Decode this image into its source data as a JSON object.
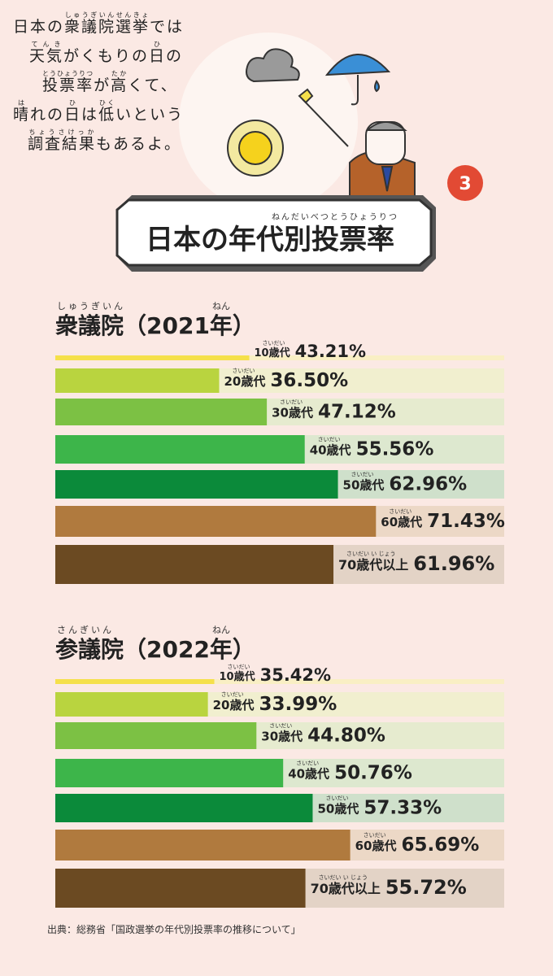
{
  "intro": [
    [
      "日本の",
      {
        "base": "衆議院選挙",
        "ruby": "しゅうぎいんせんきょ"
      },
      "では"
    ],
    [
      {
        "base": "天気",
        "ruby": "てんき"
      },
      "がくもりの",
      {
        "base": "日",
        "ruby": "ひ"
      },
      "の"
    ],
    [
      {
        "base": "投票率",
        "ruby": "とうひょうりつ"
      },
      "が",
      {
        "base": "高",
        "ruby": "たか"
      },
      "くて、"
    ],
    [
      {
        "base": "晴",
        "ruby": "は"
      },
      "れの",
      {
        "base": "日",
        "ruby": "ひ"
      },
      "は",
      {
        "base": "低",
        "ruby": "ひく"
      },
      "いという"
    ],
    [
      {
        "base": "調査結果",
        "ruby": "ちょうさけっか"
      },
      "もあるよ。"
    ]
  ],
  "badge": "3",
  "header": {
    "prefix": "日本の",
    "base": "年代別投票率",
    "ruby": "ねんだいべつとうひょうりつ"
  },
  "chart_data": [
    {
      "type": "bar",
      "title": "衆議院（2021年）",
      "title_ruby": [
        "しゅうぎいん",
        "ねん"
      ],
      "categories": [
        "10歳代",
        "20歳代",
        "30歳代",
        "40歳代",
        "50歳代",
        "60歳代",
        "70歳代以上"
      ],
      "category_ruby": [
        "さいだい",
        "さいだい",
        "さいだい",
        "さいだい",
        "さいだい",
        "さいだい",
        "さいだい い じょう"
      ],
      "values": [
        43.21,
        36.5,
        47.12,
        55.56,
        62.96,
        71.43,
        61.96
      ],
      "value_labels": [
        "43.21%",
        "36.50%",
        "47.12%",
        "55.56%",
        "62.96%",
        "71.43%",
        "61.96%"
      ],
      "xlim": [
        0,
        100
      ],
      "colors": [
        "#f5e04a",
        "#b9d43f",
        "#7cc144",
        "#3db54a",
        "#0b8a3a",
        "#b07a3e",
        "#6b4a22"
      ],
      "track_colors": [
        "#f9efc4",
        "#f1efcf",
        "#e6ebcf",
        "#dde8cf",
        "#cfe0cb",
        "#ecd8c6",
        "#e3d3c6"
      ]
    },
    {
      "type": "bar",
      "title": "参議院（2022年）",
      "title_ruby": [
        "さんぎいん",
        "ねん"
      ],
      "categories": [
        "10歳代",
        "20歳代",
        "30歳代",
        "40歳代",
        "50歳代",
        "60歳代",
        "70歳代以上"
      ],
      "category_ruby": [
        "さいだい",
        "さいだい",
        "さいだい",
        "さいだい",
        "さいだい",
        "さいだい",
        "さいだい い じょう"
      ],
      "values": [
        35.42,
        33.99,
        44.8,
        50.76,
        57.33,
        65.69,
        55.72
      ],
      "value_labels": [
        "35.42%",
        "33.99%",
        "44.80%",
        "50.76%",
        "57.33%",
        "65.69%",
        "55.72%"
      ],
      "xlim": [
        0,
        100
      ],
      "colors": [
        "#f5e04a",
        "#b9d43f",
        "#7cc144",
        "#3db54a",
        "#0b8a3a",
        "#b07a3e",
        "#6b4a22"
      ],
      "track_colors": [
        "#f9efc4",
        "#f1efcf",
        "#e6ebcf",
        "#dde8cf",
        "#cfe0cb",
        "#ecd8c6",
        "#e3d3c6"
      ]
    }
  ],
  "source": "出典：総務省「国政選挙の年代別投票率の推移について」"
}
